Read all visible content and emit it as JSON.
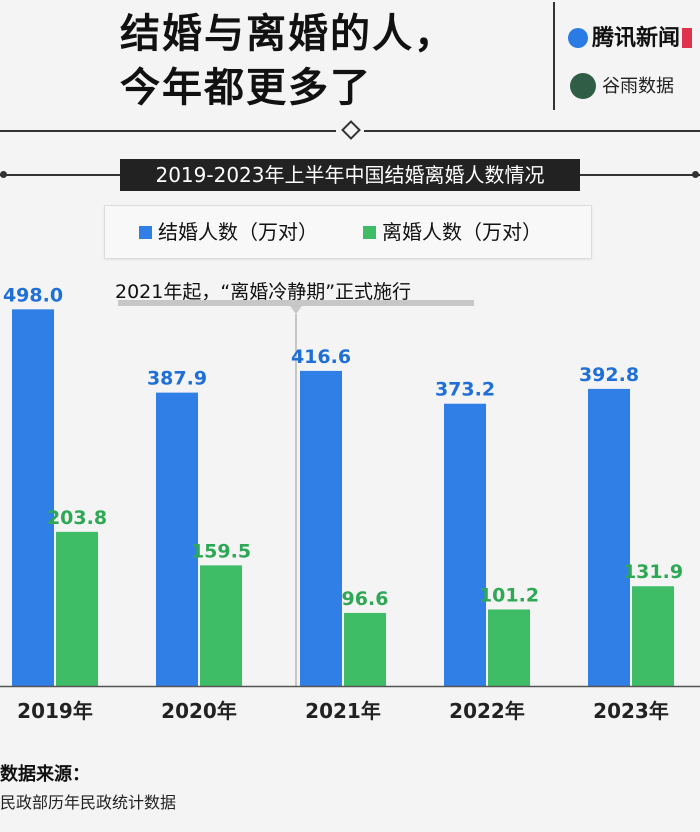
{
  "header": {
    "title_line1": "结婚与离婚的人，",
    "title_line2": "今年都更多了",
    "brand1": "腾讯新闻",
    "brand2": "谷雨数据"
  },
  "annotation": {
    "text": "2021年起，“离婚冷静期”正式施行",
    "category": "2021年"
  },
  "chart_data": {
    "type": "bar",
    "title": "2019-2023年上半年中国结婚离婚人数情况",
    "categories": [
      "2019年",
      "2020年",
      "2021年",
      "2022年",
      "2023年"
    ],
    "series": [
      {
        "name": "结婚人数（万对）",
        "values": [
          498.0,
          387.9,
          416.6,
          373.2,
          392.8
        ],
        "color": "#2f7fe7",
        "label_color": "#1f6fd6"
      },
      {
        "name": "离婚人数（万对）",
        "values": [
          203.8,
          159.5,
          96.6,
          101.2,
          131.9
        ],
        "color": "#3fbd66",
        "label_color": "#2ea855"
      }
    ],
    "ylim": [
      0,
      550
    ],
    "legend_position": "top",
    "grid": false
  },
  "source": {
    "label": "数据来源：",
    "text": "民政部历年民政统计数据"
  }
}
